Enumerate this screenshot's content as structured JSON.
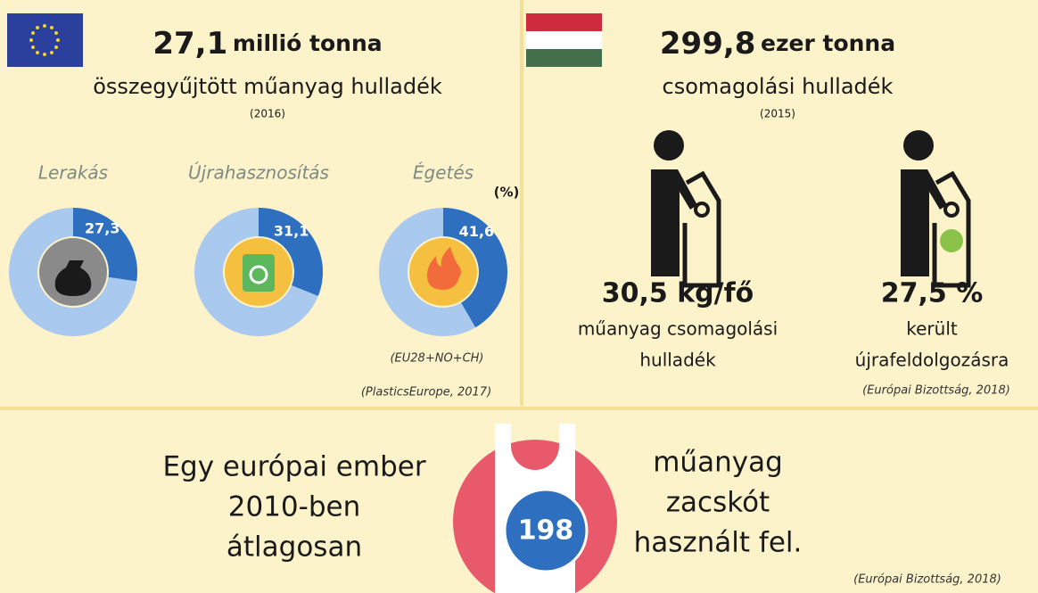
{
  "eu": {
    "title_number": "27,1",
    "title_unit": "millió tonna",
    "subtitle": "összegyűjtött műanyag hulladék",
    "year": "(2016)",
    "unit_note": "(%)",
    "donuts": [
      {
        "label": "Lerakás",
        "value": 27.3,
        "value_label": "27,3"
      },
      {
        "label": "Újrahasznosítás",
        "value": 31.1,
        "value_label": "31,1"
      },
      {
        "label": "Égetés",
        "value": 41.6,
        "value_label": "41,6"
      }
    ],
    "region": "(EU28+NO+CH)",
    "source": "(PlasticsEurope, 2017)"
  },
  "hu": {
    "title_number": "299,8",
    "title_unit": "ezer tonna",
    "subtitle": "csomagolási hulladék",
    "year": "(2015)",
    "stats": [
      {
        "value": "30,5 kg/fő",
        "lines": [
          "műanyag csomagolási",
          "hulladék"
        ]
      },
      {
        "value": "27,5 %",
        "lines": [
          "került",
          "újrafeldolgozásra"
        ]
      }
    ],
    "source": "(Európai Bizottság, 2018)"
  },
  "bags": {
    "left_lines": [
      "Egy európai ember",
      "2010-ben",
      "átlagosan"
    ],
    "number": "198",
    "right_lines": [
      "műanyag",
      "zacskót",
      "használt fel."
    ],
    "source": "(Európai Bizottság, 2018)"
  }
}
